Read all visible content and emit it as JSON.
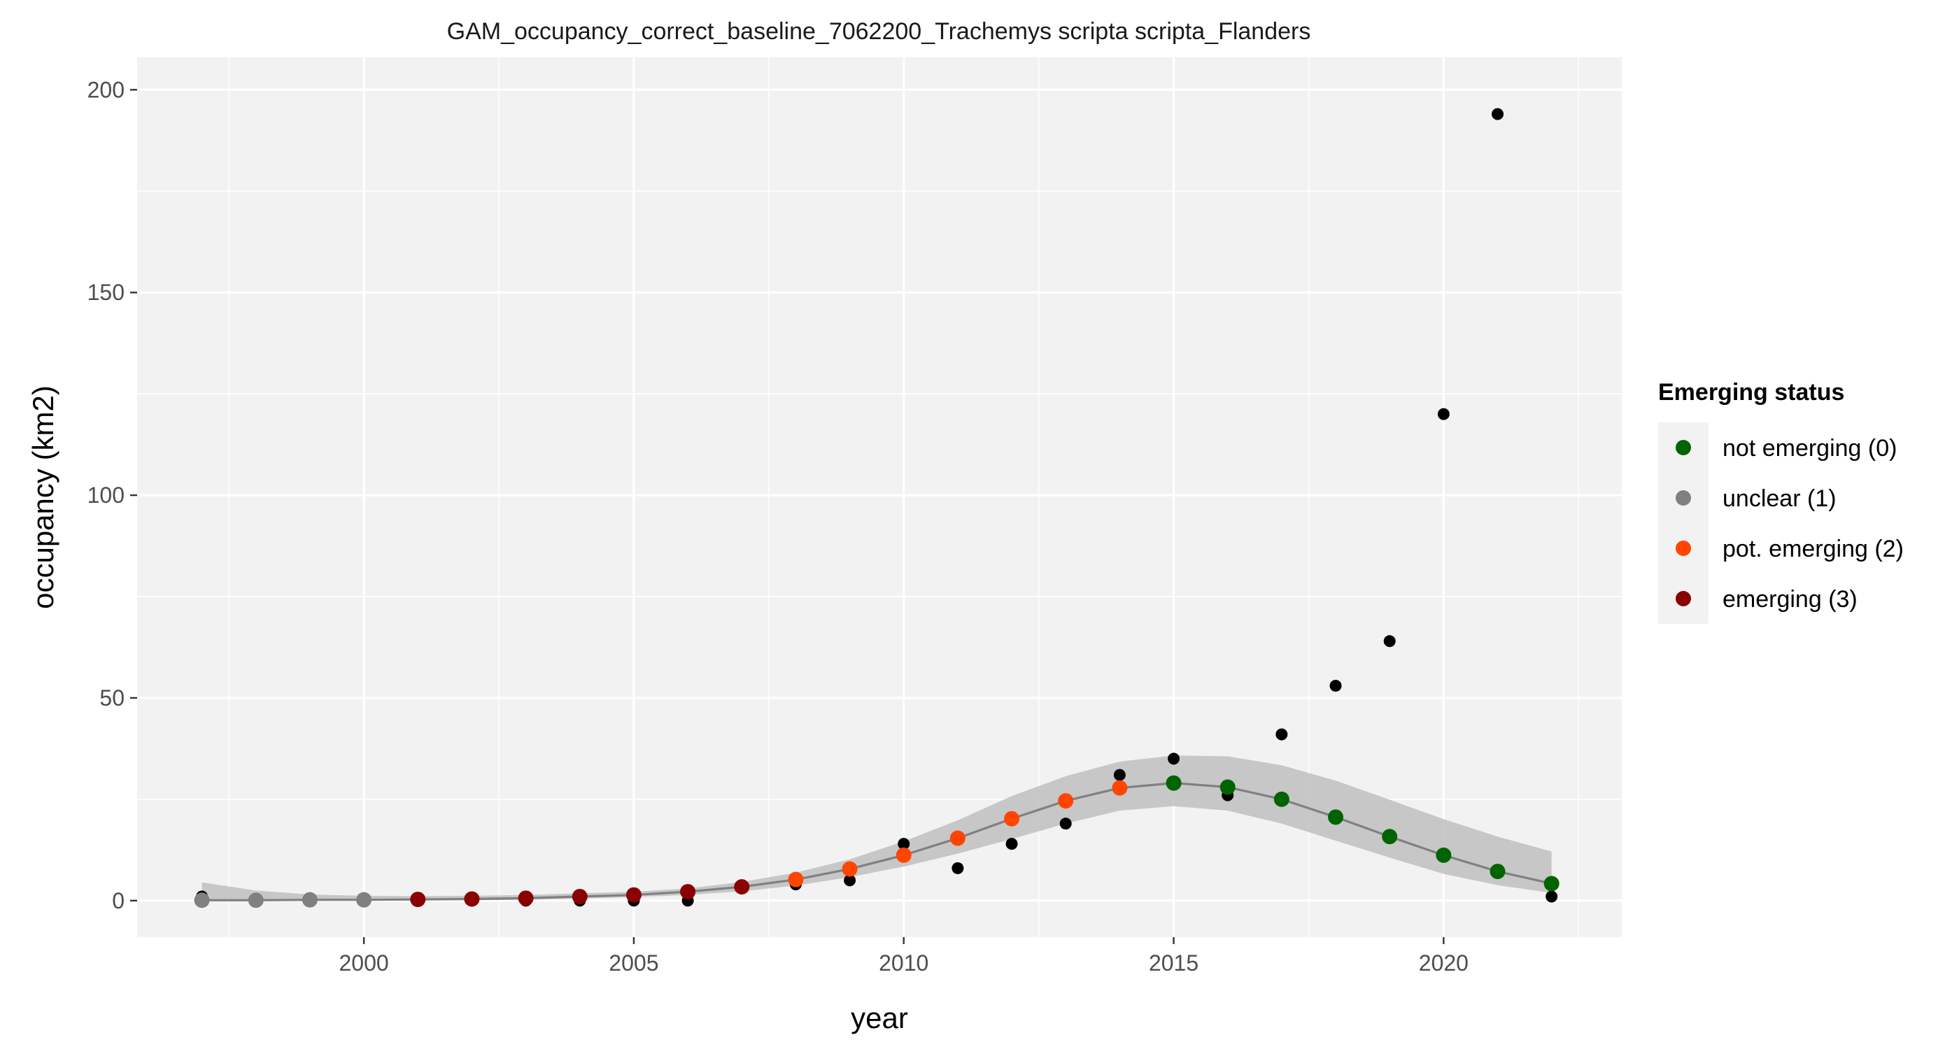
{
  "chart_data": {
    "type": "scatter",
    "title": "GAM_occupancy_correct_baseline_7062200_Trachemys scripta scripta_Flanders",
    "xlabel": "year",
    "ylabel": "occupancy (km2)",
    "xlim": [
      1995.8,
      2023.3
    ],
    "ylim": [
      -9,
      208
    ],
    "x_ticks": [
      2000,
      2005,
      2010,
      2015,
      2020
    ],
    "x_tick_labels": [
      "2000",
      "2005",
      "2010",
      "2015",
      "2020"
    ],
    "y_ticks": [
      0,
      50,
      100,
      150,
      200
    ],
    "y_tick_labels": [
      "0",
      "50",
      "100",
      "150",
      "200"
    ],
    "grid": true,
    "panel_background": "#f2f2f2",
    "grid_color": "#ffffff",
    "legend": {
      "title": "Emerging status",
      "placement": "right",
      "entries": [
        {
          "label": "not emerging (0)",
          "color": "#006400"
        },
        {
          "label": "unclear (1)",
          "color": "#808080"
        },
        {
          "label": "pot. emerging (2)",
          "color": "#ff4500"
        },
        {
          "label": "emerging (3)",
          "color": "#8b0000"
        }
      ]
    },
    "observed": {
      "color": "#000000",
      "x": [
        1997,
        1998,
        1999,
        2000,
        2001,
        2002,
        2003,
        2004,
        2005,
        2006,
        2007,
        2008,
        2009,
        2010,
        2011,
        2012,
        2013,
        2014,
        2015,
        2016,
        2017,
        2018,
        2019,
        2020,
        2021,
        2022
      ],
      "y": [
        1,
        0,
        0,
        0,
        0,
        0,
        0,
        0,
        0,
        0,
        3,
        4,
        5,
        14,
        8,
        14,
        19,
        31,
        35,
        26,
        41,
        53,
        64,
        120,
        194,
        1
      ]
    },
    "fit": {
      "line_color": "#808080",
      "band_color": "#bfbfbf",
      "x": [
        1997,
        1998,
        1999,
        2000,
        2001,
        2002,
        2003,
        2004,
        2005,
        2006,
        2007,
        2008,
        2009,
        2010,
        2011,
        2012,
        2013,
        2014,
        2015,
        2016,
        2017,
        2018,
        2019,
        2020,
        2021,
        2022
      ],
      "y": [
        0.1,
        0.1,
        0.2,
        0.2,
        0.3,
        0.4,
        0.6,
        1.0,
        1.4,
        2.2,
        3.4,
        5.2,
        7.8,
        11.2,
        15.4,
        20.2,
        24.6,
        27.8,
        29.0,
        28.0,
        25.0,
        20.6,
        15.8,
        11.2,
        7.2,
        4.2
      ],
      "lower": [
        0.0,
        0.0,
        0.0,
        0.0,
        0.0,
        0.1,
        0.2,
        0.5,
        0.9,
        1.4,
        2.3,
        3.7,
        5.8,
        8.4,
        11.6,
        15.2,
        19.0,
        22.2,
        23.3,
        22.2,
        19.0,
        14.8,
        10.6,
        6.6,
        3.8,
        1.9
      ],
      "upper": [
        4.5,
        2.5,
        1.5,
        1.2,
        1.1,
        1.2,
        1.4,
        1.8,
        2.2,
        3.0,
        4.6,
        6.9,
        10.2,
        14.6,
        19.8,
        25.8,
        30.7,
        34.3,
        35.8,
        35.6,
        33.4,
        29.6,
        24.9,
        20.1,
        15.8,
        12.1
      ],
      "status": [
        "unclear (1)",
        "unclear (1)",
        "unclear (1)",
        "unclear (1)",
        "emerging (3)",
        "emerging (3)",
        "emerging (3)",
        "emerging (3)",
        "emerging (3)",
        "emerging (3)",
        "emerging (3)",
        "pot. emerging (2)",
        "pot. emerging (2)",
        "pot. emerging (2)",
        "pot. emerging (2)",
        "pot. emerging (2)",
        "pot. emerging (2)",
        "pot. emerging (2)",
        "not emerging (0)",
        "not emerging (0)",
        "not emerging (0)",
        "not emerging (0)",
        "not emerging (0)",
        "not emerging (0)",
        "not emerging (0)",
        "not emerging (0)"
      ]
    }
  }
}
